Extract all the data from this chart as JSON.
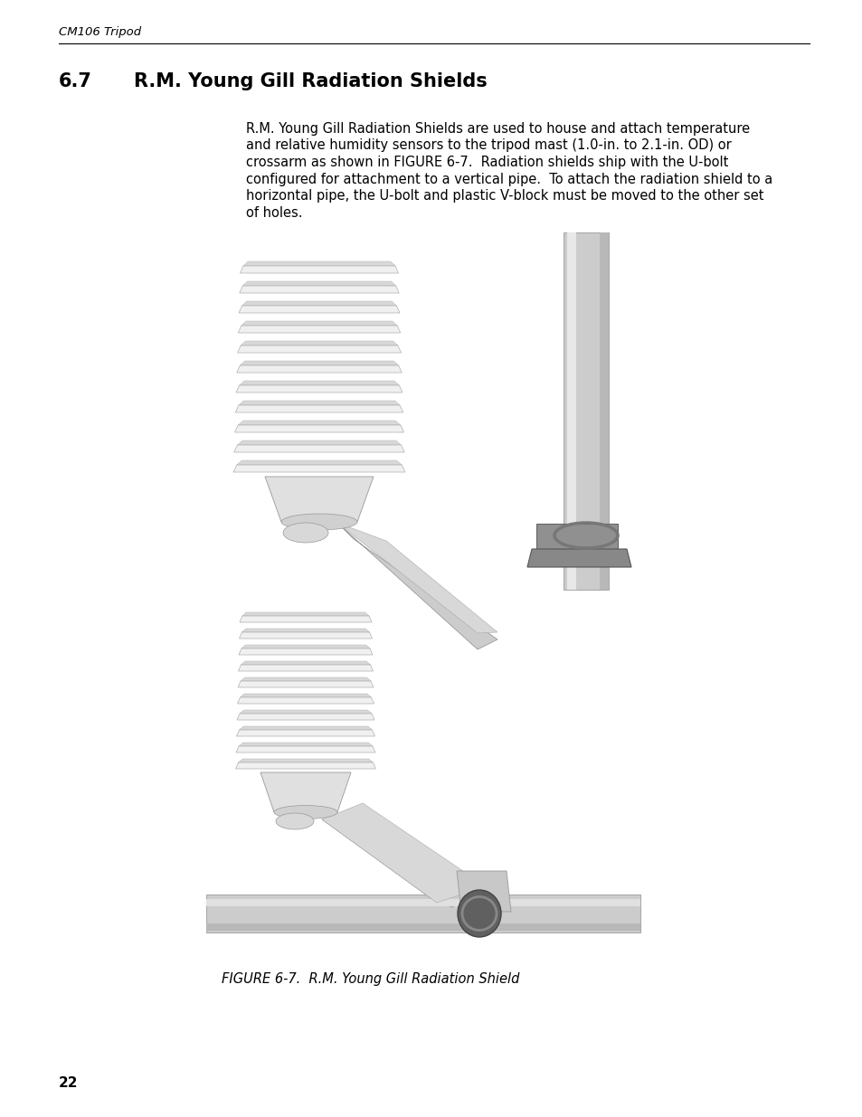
{
  "page_header": "CM106 Tripod",
  "section_number": "6.7",
  "section_title": "R.M. Young Gill Radiation Shields",
  "body_text_lines": [
    "R.M. Young Gill Radiation Shields are used to house and attach temperature",
    "and relative humidity sensors to the tripod mast (1.0-in. to 2.1-in. OD) or",
    "crossarm as shown in FIGURE 6-7.  Radiation shields ship with the U-bolt",
    "configured for attachment to a vertical pipe.  To attach the radiation shield to a",
    "horizontal pipe, the U-bolt and plastic V-block must be moved to the other set",
    "of holes."
  ],
  "figure_caption": "FIGURE 6-7.  R.M. Young Gill Radiation Shield",
  "page_number": "22",
  "bg_color": "#ffffff",
  "text_color": "#000000",
  "header_font_size": 9.5,
  "section_font_size": 15,
  "body_font_size": 10.5,
  "caption_font_size": 10.5,
  "page_num_font_size": 11
}
